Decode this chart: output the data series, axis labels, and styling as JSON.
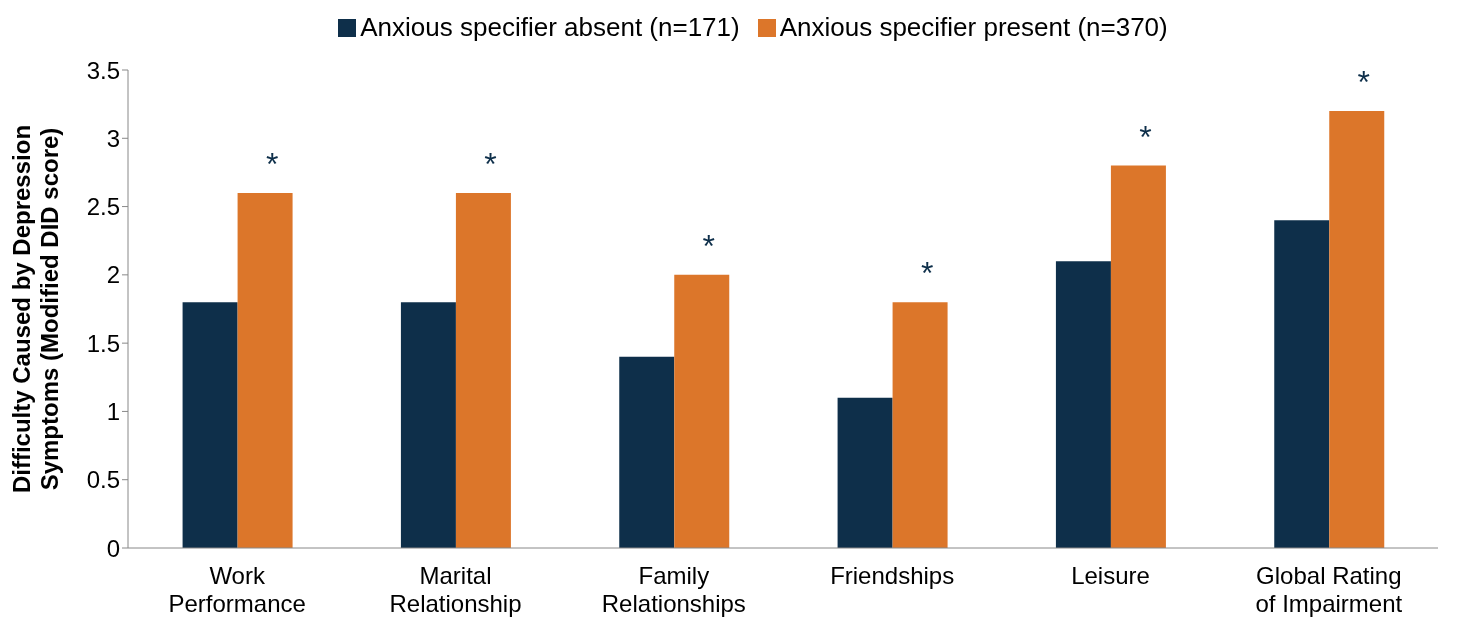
{
  "chart_data": {
    "type": "bar",
    "ylabel": "Difficulty Caused by Depression Symptoms (Modified DID score)",
    "categories": [
      "Work Performance",
      "Marital Relationship",
      "Family Relationships",
      "Friendships",
      "Leisure",
      "Global Rating of Impairment"
    ],
    "series": [
      {
        "name": "Anxious specifier absent (n=171)",
        "color": "#0e2f4a",
        "values": [
          1.8,
          1.8,
          1.4,
          1.1,
          2.1,
          2.4
        ]
      },
      {
        "name": "Anxious specifier present (n=370)",
        "color": "#dc762a",
        "values": [
          2.6,
          2.6,
          2.0,
          1.8,
          2.8,
          3.2
        ]
      }
    ],
    "ylim": [
      0,
      3.5
    ],
    "yticks": [
      0,
      0.5,
      1,
      1.5,
      2,
      2.5,
      3,
      3.5
    ],
    "grid": false,
    "legend": "top",
    "annotations": [
      "*",
      "*",
      "*",
      "*",
      "*",
      "*"
    ]
  }
}
